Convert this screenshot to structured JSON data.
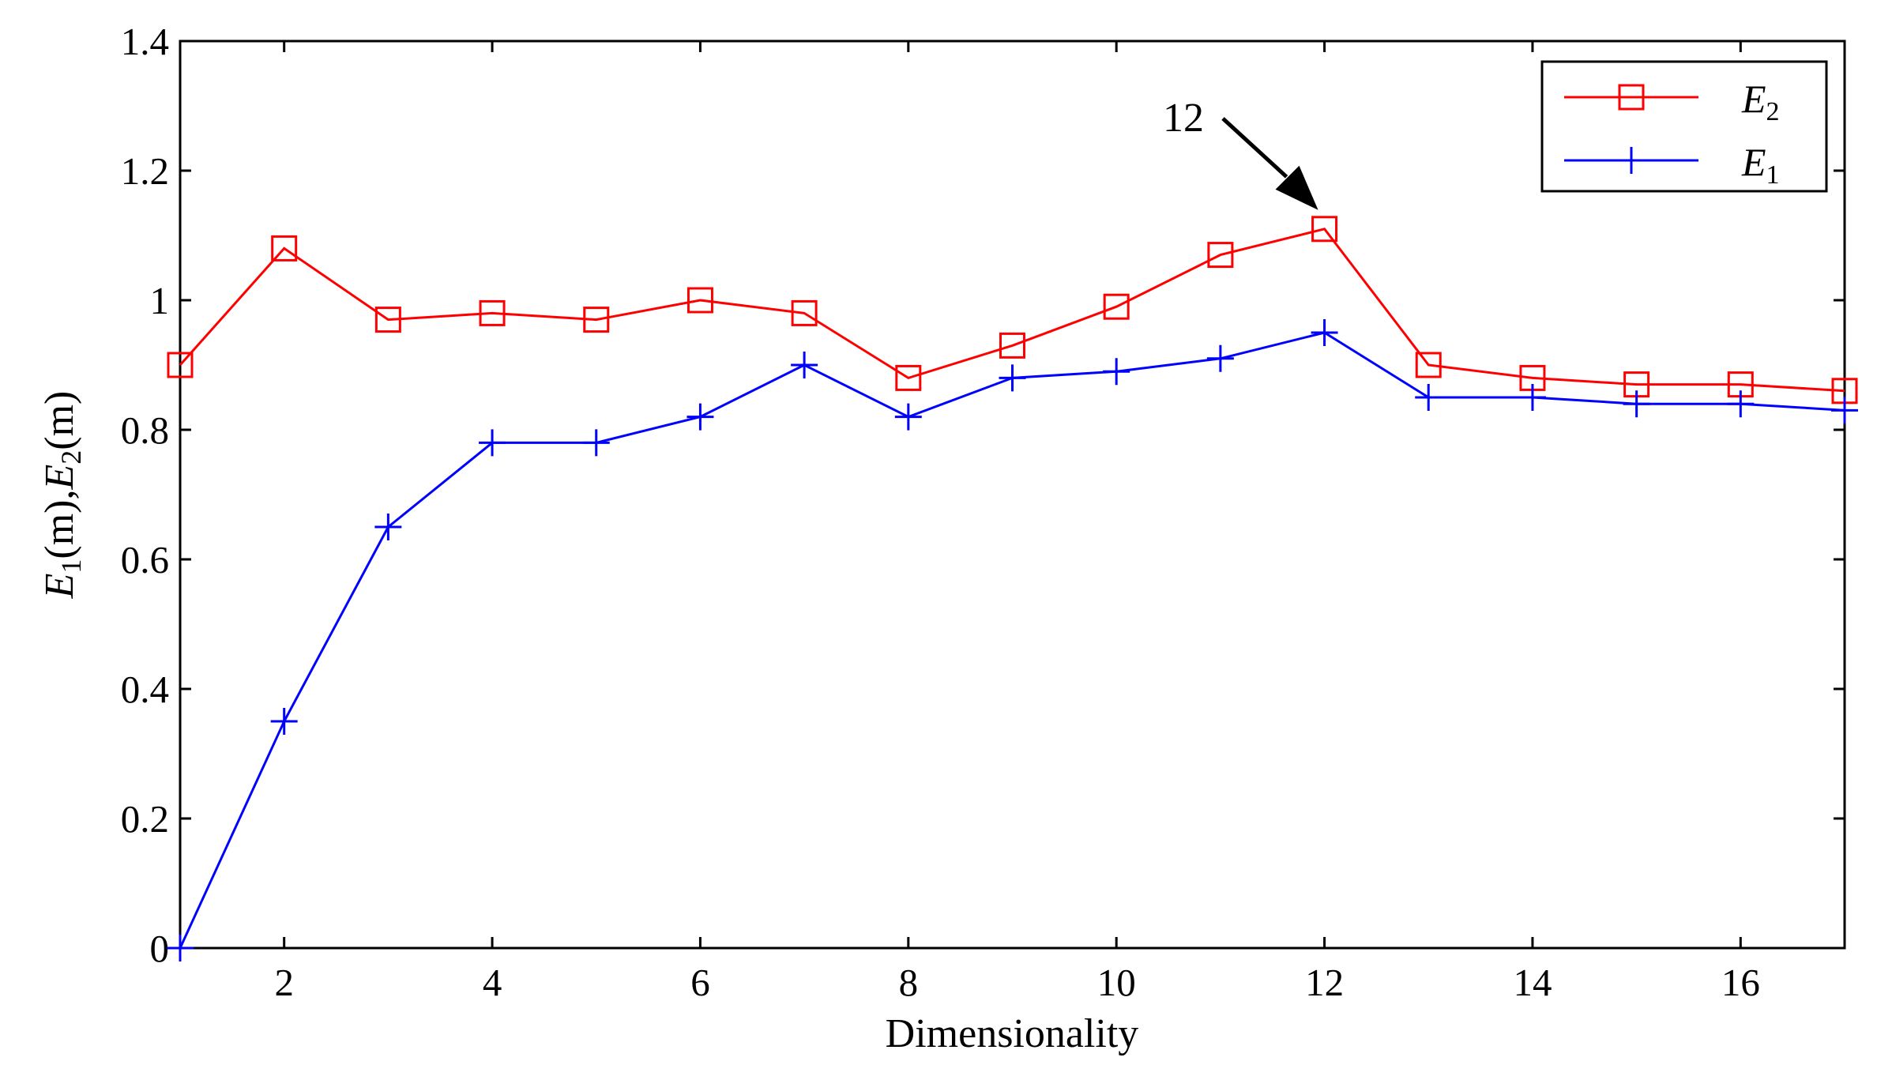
{
  "chart_data": {
    "type": "line",
    "title": "",
    "xlabel": "Dimensionality",
    "ylabel": {
      "parts": [
        {
          "text": "E",
          "sub": "1",
          "rest": "(m),"
        },
        {
          "text": "E",
          "sub": "2",
          "rest": "(m)"
        }
      ]
    },
    "xlim": [
      1,
      17
    ],
    "ylim": [
      0,
      1.4
    ],
    "xticks": [
      2,
      4,
      6,
      8,
      10,
      12,
      14,
      16
    ],
    "yticks": [
      0,
      0.2,
      0.4,
      0.6,
      0.8,
      1,
      1.2,
      1.4
    ],
    "ytick_labels": [
      "0",
      "0.2",
      "0.4",
      "0.6",
      "0.8",
      "1",
      "1.2",
      "1.4"
    ],
    "grid": false,
    "legend_position": "top-right",
    "x": [
      1,
      2,
      3,
      4,
      5,
      6,
      7,
      8,
      9,
      10,
      11,
      12,
      13,
      14,
      15,
      16,
      17
    ],
    "series": [
      {
        "name": "E2",
        "label_main": "E",
        "label_sub": "2",
        "color": "#ff0000",
        "marker": "square",
        "values": [
          0.9,
          1.08,
          0.97,
          0.98,
          0.97,
          1.0,
          0.98,
          0.88,
          0.93,
          0.99,
          1.07,
          1.11,
          0.9,
          0.88,
          0.87,
          0.87,
          0.86
        ]
      },
      {
        "name": "E1",
        "label_main": "E",
        "label_sub": "1",
        "color": "#0000ff",
        "marker": "plus",
        "values": [
          0.0,
          0.35,
          0.65,
          0.78,
          0.78,
          0.82,
          0.9,
          0.82,
          0.88,
          0.89,
          0.91,
          0.95,
          0.85,
          0.85,
          0.84,
          0.84,
          0.83
        ]
      }
    ],
    "annotations": [
      {
        "text": "12",
        "target_x": 12,
        "target_y": 1.11,
        "arrow": true
      }
    ]
  }
}
